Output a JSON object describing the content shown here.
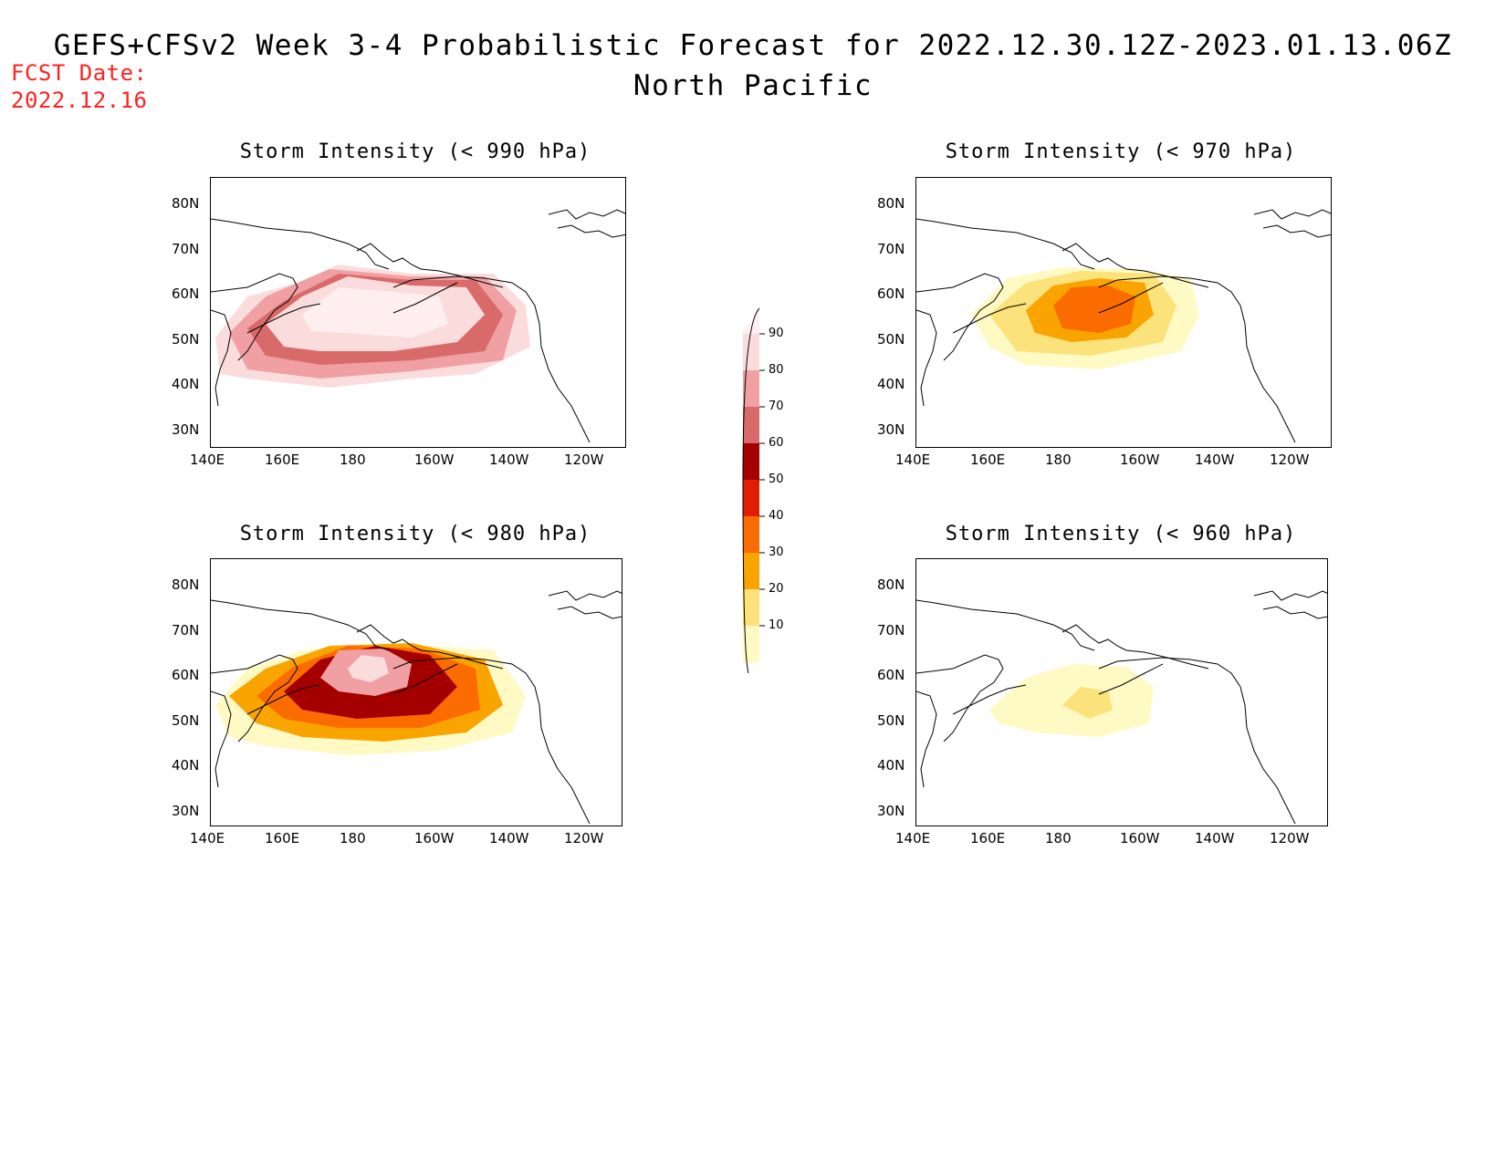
{
  "header": {
    "title": "GEFS+CFSv2 Week 3-4 Probabilistic Forecast for 2022.12.30.12Z-2023.01.13.06Z",
    "region": "North Pacific",
    "fcst_label": "FCST Date:",
    "fcst_date": "2022.12.16"
  },
  "panels": [
    {
      "title": "Storm Intensity (< 990 hPa)",
      "intensity": "high"
    },
    {
      "title": "Storm Intensity (< 970 hPa)",
      "intensity": "mid"
    },
    {
      "title": "Storm Intensity (< 980 hPa)",
      "intensity": "midhigh"
    },
    {
      "title": "Storm Intensity (< 960 hPa)",
      "intensity": "low"
    }
  ],
  "axes": {
    "lat_labels": [
      "80N",
      "70N",
      "60N",
      "50N",
      "40N",
      "30N"
    ],
    "lon_labels": [
      "140E",
      "160E",
      "180",
      "160W",
      "140W",
      "120W"
    ]
  },
  "colorbar": {
    "levels": [
      "10",
      "20",
      "30",
      "40",
      "50",
      "60",
      "70",
      "80",
      "90"
    ],
    "colors": [
      "#fff9c4",
      "#fbe27a",
      "#f9a400",
      "#fb6c00",
      "#e11c00",
      "#a50000",
      "#d96a6a",
      "#f0a0a3",
      "#fbdcdc",
      "#ffeef0"
    ]
  }
}
